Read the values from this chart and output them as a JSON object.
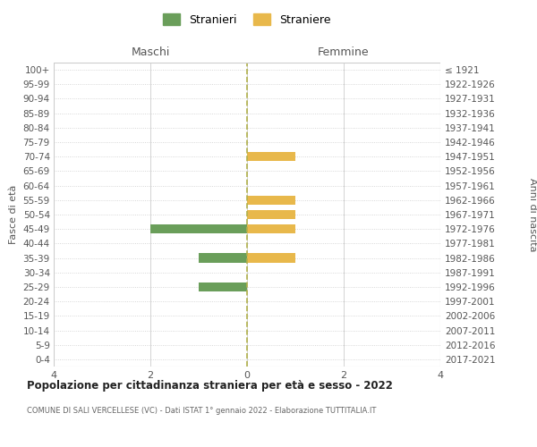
{
  "age_groups": [
    "100+",
    "95-99",
    "90-94",
    "85-89",
    "80-84",
    "75-79",
    "70-74",
    "65-69",
    "60-64",
    "55-59",
    "50-54",
    "45-49",
    "40-44",
    "35-39",
    "30-34",
    "25-29",
    "20-24",
    "15-19",
    "10-14",
    "5-9",
    "0-4"
  ],
  "birth_years": [
    "≤ 1921",
    "1922-1926",
    "1927-1931",
    "1932-1936",
    "1937-1941",
    "1942-1946",
    "1947-1951",
    "1952-1956",
    "1957-1961",
    "1962-1966",
    "1967-1971",
    "1972-1976",
    "1977-1981",
    "1982-1986",
    "1987-1991",
    "1992-1996",
    "1997-2001",
    "2002-2006",
    "2007-2011",
    "2012-2016",
    "2017-2021"
  ],
  "maschi": [
    0,
    0,
    0,
    0,
    0,
    0,
    0,
    0,
    0,
    0,
    0,
    2,
    0,
    1,
    0,
    1,
    0,
    0,
    0,
    0,
    0
  ],
  "femmine": [
    0,
    0,
    0,
    0,
    0,
    0,
    1,
    0,
    0,
    1,
    1,
    1,
    0,
    1,
    0,
    0,
    0,
    0,
    0,
    0,
    0
  ],
  "color_maschi": "#6a9e5a",
  "color_femmine": "#e8b84b",
  "xlim": 4,
  "title": "Popolazione per cittadinanza straniera per età e sesso - 2022",
  "subtitle": "COMUNE DI SALI VERCELLESE (VC) - Dati ISTAT 1° gennaio 2022 - Elaborazione TUTTITALIA.IT",
  "ylabel_left": "Fasce di età",
  "ylabel_right": "Anni di nascita",
  "label_maschi": "Stranieri",
  "label_femmine": "Straniere",
  "header_left": "Maschi",
  "header_right": "Femmine",
  "bg_color": "#ffffff",
  "grid_color": "#cccccc",
  "dot_grid_color": "#cccccc",
  "center_line_color": "#b0b04a",
  "bar_height": 0.65
}
